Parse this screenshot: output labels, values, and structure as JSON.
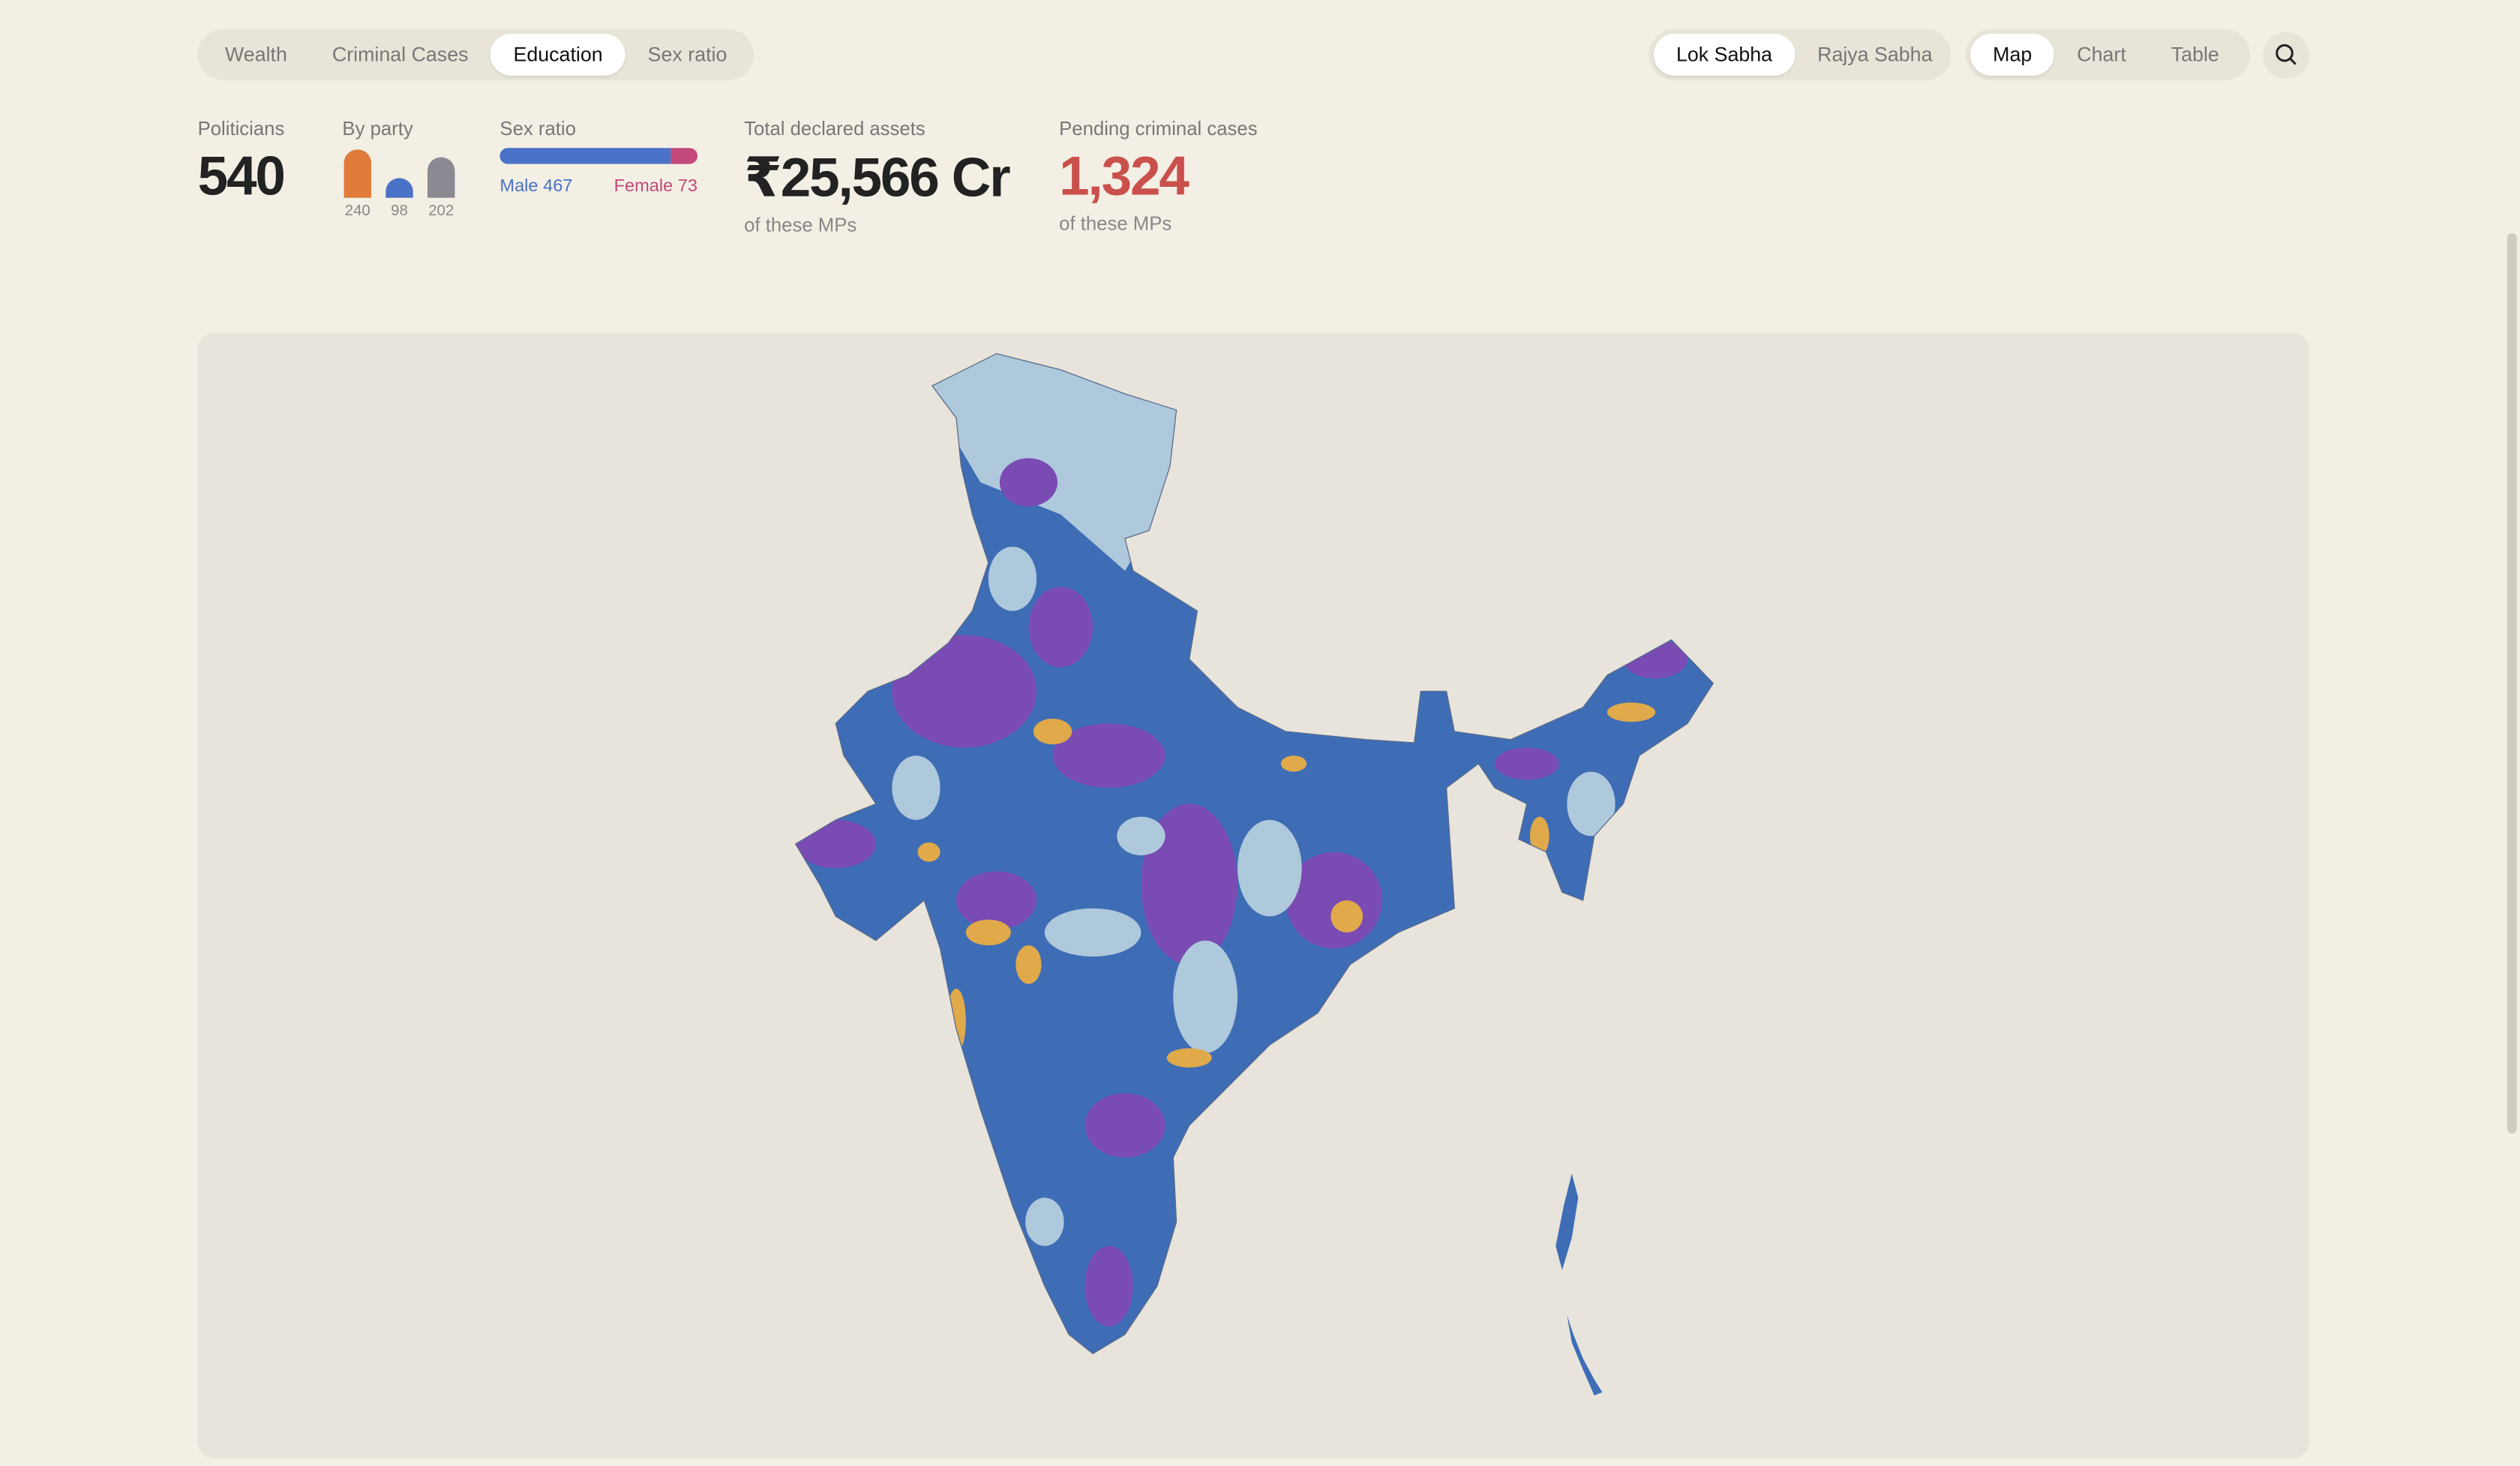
{
  "tabs": [
    "Wealth",
    "Criminal Cases",
    "Education",
    "Sex ratio"
  ],
  "house_tabs": [
    "Lok Sabha",
    "Rajya Sabha"
  ],
  "view_tabs": [
    "Map",
    "Chart",
    "Table"
  ],
  "stats": {
    "politicians": {
      "label": "Politicians",
      "value": 540
    },
    "by_party": {
      "label": "By party",
      "parties": [
        {
          "value": 240,
          "color": "#e07b39"
        },
        {
          "value": 98,
          "color": "#4a72c6"
        },
        {
          "value": 202,
          "color": "#8a8a93"
        }
      ]
    },
    "sex_ratio": {
      "label": "Sex ratio",
      "male": {
        "label": "Male",
        "value": 467,
        "color": "#4a72c6"
      },
      "female": {
        "label": "Female",
        "value": 73,
        "color": "#c2497a"
      }
    },
    "assets": {
      "label": "Total declared assets",
      "value": "₹25,566 Cr",
      "note": "of these MPs"
    },
    "criminal": {
      "label": "Pending criminal cases",
      "value": "1,324",
      "note": "of these MPs"
    }
  }
}
